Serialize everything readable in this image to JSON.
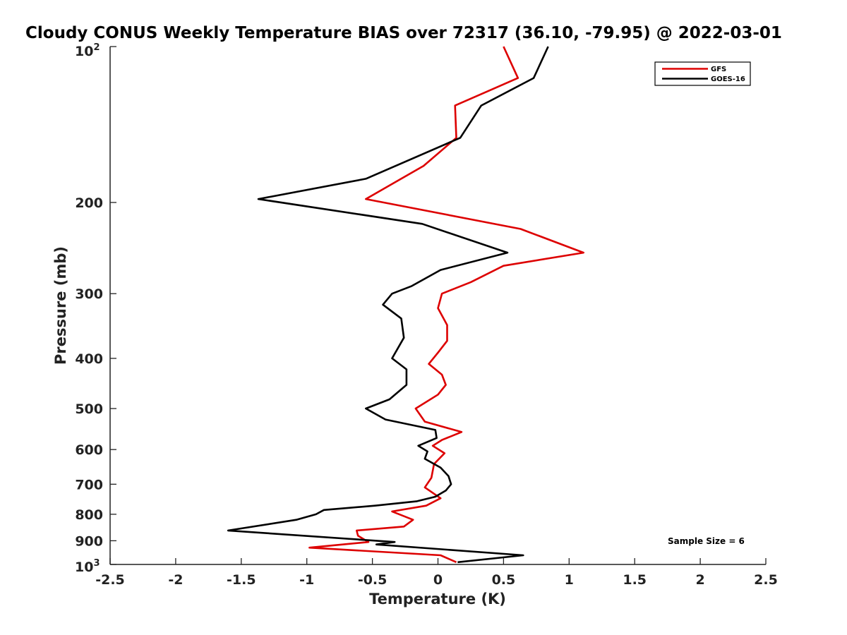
{
  "chart_data": {
    "type": "line",
    "title": "Cloudy CONUS Weekly Temperature BIAS over 72317 (36.10, -79.95) @ 2022-03-01",
    "xlabel": "Temperature (K)",
    "ylabel": "Pressure (mb)",
    "xlim": [
      -2.5,
      2.5
    ],
    "ylim": [
      100,
      1000
    ],
    "y_scale": "log",
    "y_reversed": true,
    "x_ticks": [
      -2.5,
      -2,
      -1.5,
      -1,
      -0.5,
      0,
      0.5,
      1,
      1.5,
      2,
      2.5
    ],
    "x_tick_labels": [
      "-2.5",
      "-2",
      "-1.5",
      "-1",
      "-0.5",
      "0",
      "0.5",
      "1",
      "1.5",
      "2",
      "2.5"
    ],
    "y_ticks": [
      200,
      300,
      400,
      500,
      600,
      700,
      800,
      900
    ],
    "y_tick_labels": [
      "200",
      "300",
      "400",
      "500",
      "600",
      "700",
      "800",
      "900"
    ],
    "y_top_label": {
      "base": "10",
      "exp": "2"
    },
    "y_bottom_label": {
      "base": "10",
      "exp": "3"
    },
    "grid": false,
    "legend_position": "top-right",
    "annotation": "Sample Size = 6",
    "series": [
      {
        "name": "GFS",
        "color": "#dd0000",
        "points": [
          [
            0.5,
            100
          ],
          [
            0.61,
            115
          ],
          [
            0.13,
            130
          ],
          [
            0.14,
            150
          ],
          [
            -0.11,
            170
          ],
          [
            -0.55,
            197
          ],
          [
            0.63,
            225
          ],
          [
            1.11,
            250
          ],
          [
            0.5,
            265
          ],
          [
            0.25,
            285
          ],
          [
            0.03,
            300
          ],
          [
            0.0,
            320
          ],
          [
            0.07,
            345
          ],
          [
            0.07,
            370
          ],
          [
            0.0,
            390
          ],
          [
            -0.07,
            410
          ],
          [
            0.03,
            430
          ],
          [
            0.06,
            450
          ],
          [
            0.0,
            470
          ],
          [
            -0.17,
            500
          ],
          [
            -0.1,
            530
          ],
          [
            0.18,
            555
          ],
          [
            0.03,
            575
          ],
          [
            -0.04,
            590
          ],
          [
            0.05,
            610
          ],
          [
            -0.03,
            640
          ],
          [
            -0.05,
            680
          ],
          [
            -0.1,
            710
          ],
          [
            0.02,
            745
          ],
          [
            -0.09,
            770
          ],
          [
            -0.35,
            790
          ],
          [
            -0.19,
            820
          ],
          [
            -0.26,
            845
          ],
          [
            -0.62,
            860
          ],
          [
            -0.61,
            880
          ],
          [
            -0.53,
            905
          ],
          [
            -0.98,
            928
          ],
          [
            0.02,
            960
          ],
          [
            0.08,
            975
          ],
          [
            0.14,
            990
          ]
        ]
      },
      {
        "name": "GOES-16",
        "color": "#000000",
        "points": [
          [
            0.84,
            100
          ],
          [
            0.73,
            115
          ],
          [
            0.33,
            130
          ],
          [
            0.17,
            150
          ],
          [
            -0.55,
            180
          ],
          [
            -1.37,
            197
          ],
          [
            -0.12,
            220
          ],
          [
            0.53,
            250
          ],
          [
            0.02,
            270
          ],
          [
            -0.2,
            290
          ],
          [
            -0.35,
            300
          ],
          [
            -0.42,
            315
          ],
          [
            -0.28,
            335
          ],
          [
            -0.26,
            365
          ],
          [
            -0.35,
            400
          ],
          [
            -0.24,
            420
          ],
          [
            -0.24,
            450
          ],
          [
            -0.37,
            480
          ],
          [
            -0.55,
            500
          ],
          [
            -0.4,
            525
          ],
          [
            -0.02,
            550
          ],
          [
            -0.01,
            570
          ],
          [
            -0.15,
            590
          ],
          [
            -0.08,
            605
          ],
          [
            -0.1,
            625
          ],
          [
            0.02,
            650
          ],
          [
            0.08,
            675
          ],
          [
            0.1,
            700
          ],
          [
            0.06,
            720
          ],
          [
            -0.02,
            740
          ],
          [
            -0.16,
            755
          ],
          [
            -0.48,
            770
          ],
          [
            -0.87,
            785
          ],
          [
            -0.93,
            800
          ],
          [
            -1.08,
            820
          ],
          [
            -1.6,
            860
          ],
          [
            -0.33,
            905
          ],
          [
            -0.47,
            915
          ],
          [
            0.65,
            960
          ],
          [
            0.15,
            990
          ]
        ]
      }
    ]
  }
}
